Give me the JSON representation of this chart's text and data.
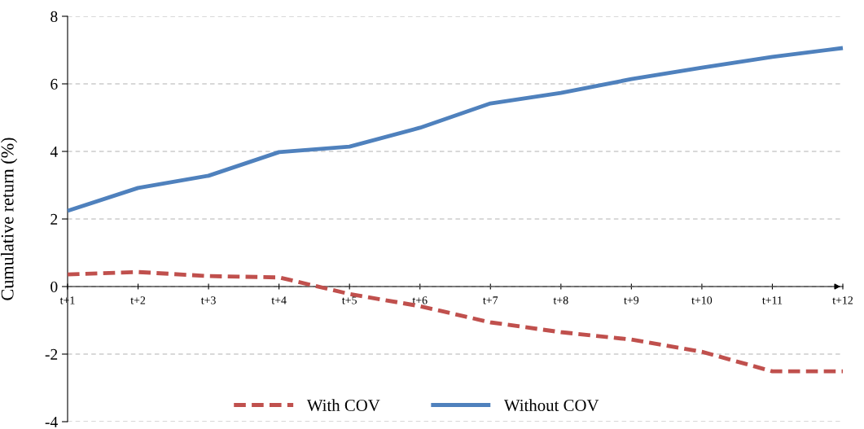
{
  "chart_data": {
    "type": "line",
    "ylabel": "Cumulative return (%)",
    "categories": [
      "t+1",
      "t+2",
      "t+3",
      "t+4",
      "t+5",
      "t+6",
      "t+7",
      "t+8",
      "t+9",
      "t+10",
      "t+11",
      "t+12"
    ],
    "series": [
      {
        "name": "With COV",
        "color": "#c0504d",
        "line_style": "dashed",
        "values": [
          0.36,
          0.43,
          0.31,
          0.27,
          -0.22,
          -0.58,
          -1.06,
          -1.35,
          -1.57,
          -1.93,
          -2.51,
          -2.51
        ]
      },
      {
        "name": "Without COV",
        "color": "#4f81bd",
        "line_style": "solid",
        "values": [
          2.24,
          2.92,
          3.28,
          3.98,
          4.14,
          4.7,
          5.42,
          5.73,
          6.14,
          6.48,
          6.8,
          7.06
        ]
      }
    ],
    "ylim": [
      -4,
      8
    ],
    "yticks": [
      {
        "value": -4,
        "label": "-4"
      },
      {
        "value": -2,
        "label": "-2"
      },
      0,
      2,
      4,
      6,
      8
    ],
    "grid": "y",
    "legend": "bottom",
    "marker": "none"
  }
}
